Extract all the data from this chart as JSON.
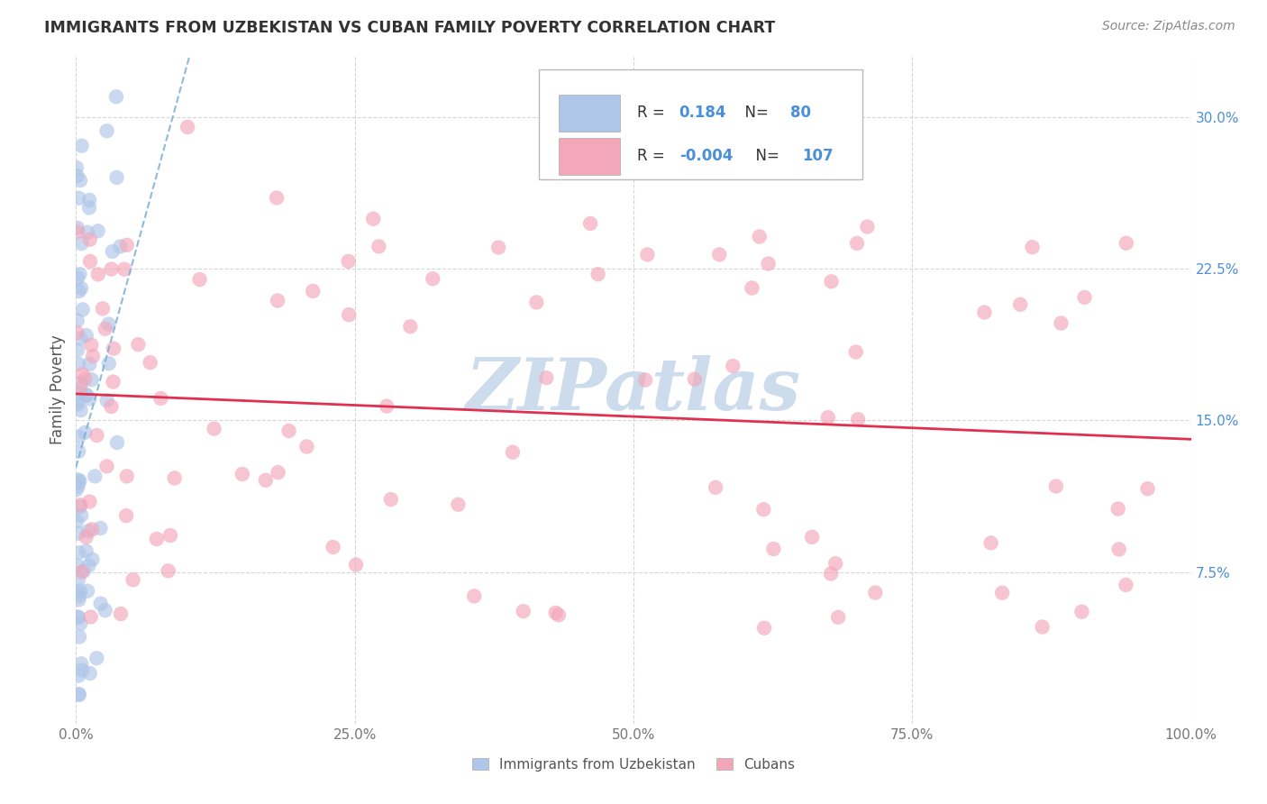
{
  "title": "IMMIGRANTS FROM UZBEKISTAN VS CUBAN FAMILY POVERTY CORRELATION CHART",
  "source": "Source: ZipAtlas.com",
  "ylabel": "Family Poverty",
  "yticks": [
    0.075,
    0.15,
    0.225,
    0.3
  ],
  "ytick_labels": [
    "7.5%",
    "15.0%",
    "22.5%",
    "30.0%"
  ],
  "xlim": [
    0.0,
    1.0
  ],
  "ylim": [
    0.0,
    0.33
  ],
  "uzbekistan_R": 0.184,
  "uzbekistan_N": 80,
  "cuban_R": -0.004,
  "cuban_N": 107,
  "uzbekistan_color": "#aec6e8",
  "cuban_color": "#f4a7b9",
  "uzbekistan_trend_color": "#7ab0d4",
  "cuban_trend_color": "#e03050",
  "legend_box_blue": "#aec6e8",
  "legend_box_pink": "#f4a7b9",
  "watermark_color": "#ccdcec",
  "title_color": "#333333",
  "source_color": "#888888",
  "ylabel_color": "#555555",
  "tick_color_x": "#777777",
  "tick_color_y": "#4a90d9",
  "grid_color": "#cccccc"
}
